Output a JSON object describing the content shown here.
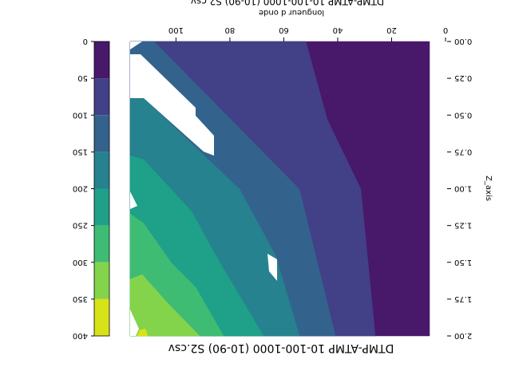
{
  "chart_data": {
    "type": "contour",
    "title": "DTMP-ATMP 10-100-1000 (10-90) S2.csv",
    "footer_text": "DTMP-ATMP 10-100-1000 (10-90) S2.csv",
    "xlabel": "longueur d onde",
    "ylabel": "Z_axis",
    "xlim": [
      0,
      117
    ],
    "xticks": [
      0,
      20,
      40,
      60,
      80,
      100
    ],
    "ylim": [
      0,
      2
    ],
    "yticks": [
      {
        "value": 0,
        "label": "0.00"
      },
      {
        "value": 0.25,
        "label": "0.25"
      },
      {
        "value": 0.5,
        "label": "0.50"
      },
      {
        "value": 0.75,
        "label": "0.75"
      },
      {
        "value": 1,
        "label": "1.00"
      },
      {
        "value": 1.25,
        "label": "1.25"
      },
      {
        "value": 1.5,
        "label": "1.50"
      },
      {
        "value": 1.75,
        "label": "1.75"
      },
      {
        "value": 2,
        "label": "2.00"
      }
    ],
    "levels": [
      0,
      50,
      100,
      150,
      200,
      250,
      300,
      350,
      400
    ],
    "colors": [
      "#48186a",
      "#424086",
      "#33638d",
      "#26828e",
      "#1fa088",
      "#3fbc73",
      "#84d44b",
      "#d8e219"
    ],
    "colorbar_ticks": [
      0,
      50,
      100,
      150,
      200,
      250,
      300,
      350,
      400
    ]
  }
}
